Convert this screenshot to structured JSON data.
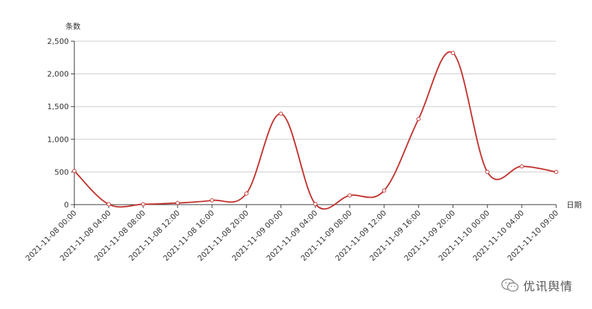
{
  "chart_data": {
    "type": "line",
    "ylabel": "条数",
    "xlabel": "日期",
    "x": [
      "2021-11-08 00:00",
      "2021-11-08 04:00",
      "2021-11-08 08:00",
      "2021-11-08 12:00",
      "2021-11-08 16:00",
      "2021-11-08 20:00",
      "2021-11-09 00:00",
      "2021-11-09 04:00",
      "2021-11-09 08:00",
      "2021-11-09 12:00",
      "2021-11-09 16:00",
      "2021-11-09 20:00",
      "2021-11-10 00:00",
      "2021-11-10 04:00",
      "2021-11-10 09:00"
    ],
    "series": [
      {
        "values": [
          515,
          5,
          5,
          25,
          65,
          170,
          1390,
          10,
          140,
          215,
          1310,
          2320,
          500,
          585,
          500
        ]
      }
    ],
    "ylim": [
      0,
      2500
    ],
    "yticks": [
      0,
      500,
      1000,
      1500,
      2000,
      2500
    ],
    "ytick_labels": [
      "0",
      "500",
      "1,000",
      "1,500",
      "2,000",
      "2,500"
    ],
    "grid": true,
    "line_color": "#c23531",
    "smooth": true
  },
  "watermark": {
    "text": "优讯舆情"
  }
}
